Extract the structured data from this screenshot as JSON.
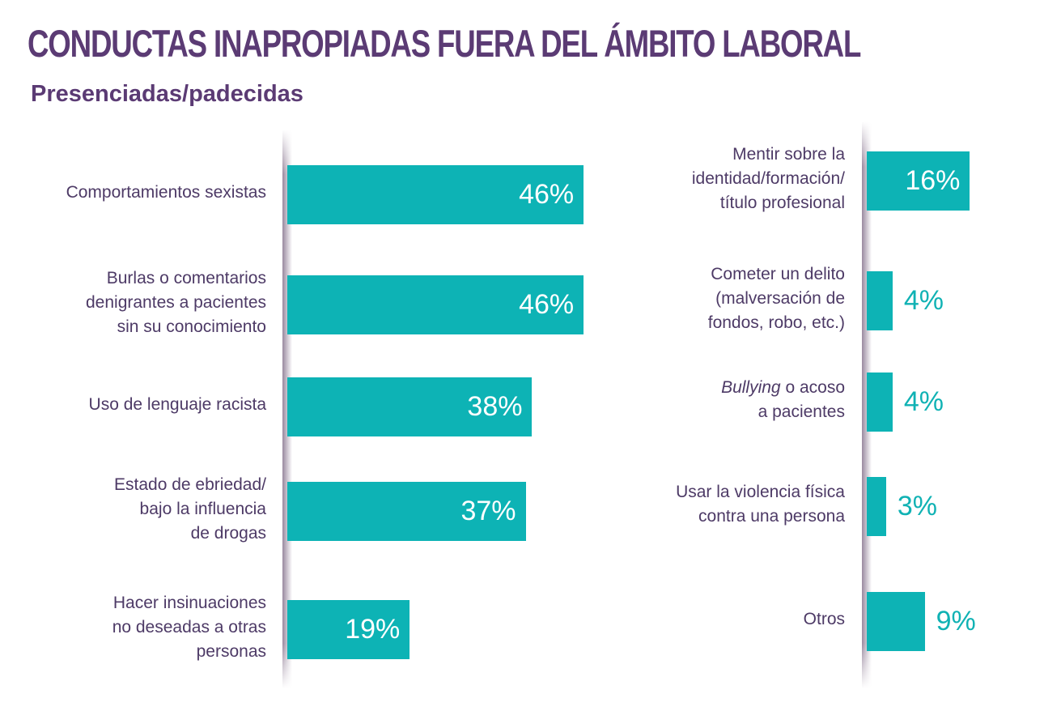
{
  "title": "CONDUCTAS INAPROPIADAS FUERA DEL ÁMBITO LABORAL",
  "subtitle": "Presenciadas/padecidas",
  "colors": {
    "bar": "#0db3b5",
    "text": "#4d3a66",
    "title": "#5b3b74"
  },
  "chart_data": [
    {
      "type": "bar",
      "orientation": "horizontal",
      "categories": [
        "Comportamientos sexistas",
        "Burlas o comentarios denigrantes a pacientes sin su conocimiento",
        "Uso de lenguaje racista",
        "Estado de ebriedad/ bajo la influencia de drogas",
        "Hacer insinuaciones no deseadas a otras personas"
      ],
      "label_lines": [
        [
          "Comportamientos sexistas"
        ],
        [
          "Burlas o comentarios",
          "denigrantes a pacientes",
          "sin su conocimiento"
        ],
        [
          "Uso de lenguaje racista"
        ],
        [
          "Estado de ebriedad/",
          "bajo la influencia",
          "de drogas"
        ],
        [
          "Hacer insinuaciones",
          "no deseadas a otras",
          "personas"
        ]
      ],
      "values": [
        46,
        46,
        38,
        37,
        19
      ],
      "value_labels": [
        "46%",
        "46%",
        "38%",
        "37%",
        "19%"
      ],
      "unit": "%"
    },
    {
      "type": "bar",
      "orientation": "horizontal",
      "categories": [
        "Mentir sobre la identidad/formación/ título profesional",
        "Cometer un delito (malversación de fondos, robo, etc.)",
        "Bullying o acoso a pacientes",
        "Usar la violencia física contra una persona",
        "Otros"
      ],
      "label_lines": [
        [
          "Mentir sobre la",
          "identidad/formación/",
          "título profesional"
        ],
        [
          "Cometer un delito",
          "(malversación de",
          "fondos, robo, etc.)"
        ],
        [
          "Bullying| o acoso",
          "a pacientes"
        ],
        [
          "Usar la violencia física",
          "contra una persona"
        ],
        [
          "Otros"
        ]
      ],
      "values": [
        16,
        4,
        4,
        3,
        9
      ],
      "value_labels": [
        "16%",
        "4%",
        "4%",
        "3%",
        "9%"
      ],
      "unit": "%"
    }
  ]
}
